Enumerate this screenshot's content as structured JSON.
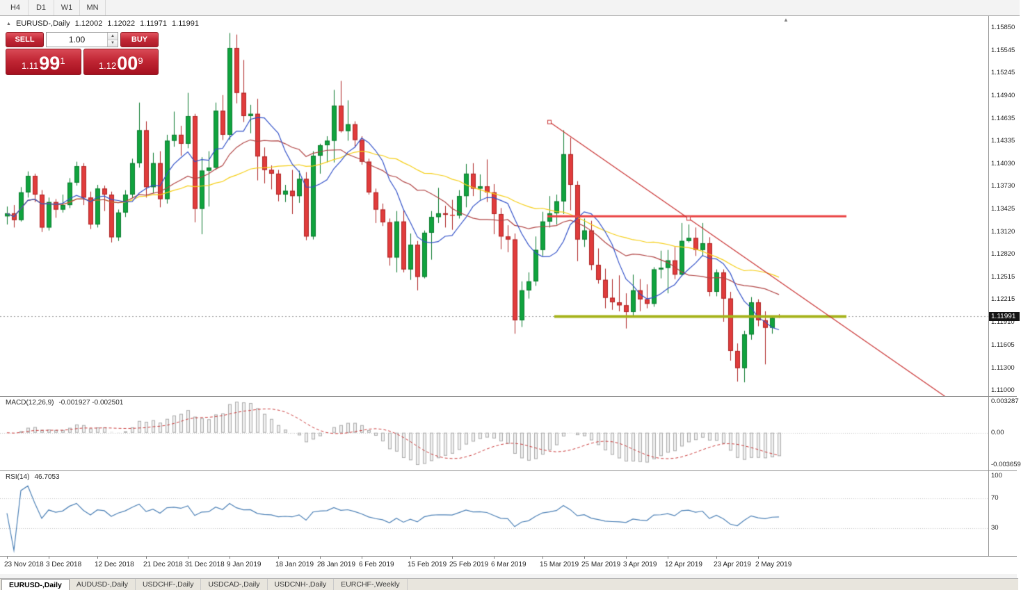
{
  "topbar": {
    "timeframes": [
      "H4",
      "D1",
      "W1",
      "MN"
    ]
  },
  "icons": {
    "symbol_expand": "▲",
    "scroll_end": "▲",
    "spin_up": "▲",
    "spin_down": "▼"
  },
  "chart_header": {
    "symbol_period": "EURUSD-,Daily",
    "open": "1.12002",
    "high": "1.12022",
    "low": "1.11971",
    "close": "1.11991"
  },
  "trade_panel": {
    "sell_label": "SELL",
    "buy_label": "BUY",
    "volume": "1.00",
    "sell_price": {
      "head": "1.11",
      "pips": "99",
      "pt": "1"
    },
    "buy_price": {
      "head": "1.12",
      "pips": "00",
      "pt": "9"
    }
  },
  "price_scale": {
    "labels": [
      "1.15850",
      "1.15545",
      "1.15245",
      "1.14940",
      "1.14635",
      "1.14335",
      "1.14030",
      "1.13730",
      "1.13425",
      "1.13120",
      "1.12820",
      "1.12515",
      "1.12215",
      "1.11910",
      "1.11605",
      "1.11300",
      "1.11000"
    ],
    "current_badge": "1.11991"
  },
  "macd_panel": {
    "name": "MACD(12,26,9)",
    "values": "-0.001927 -0.002501",
    "scale_top": "0.003287",
    "scale_zero": "0.00",
    "scale_bottom": "-0.003659"
  },
  "rsi_panel": {
    "name": "RSI(14)",
    "value": "46.7053",
    "scale_top": "100",
    "scale_mid": "70",
    "scale_low": "30"
  },
  "date_axis": {
    "ticks": [
      {
        "index": 0,
        "label": "23 Nov 2018"
      },
      {
        "index": 6,
        "label": "3 Dec 2018"
      },
      {
        "index": 13,
        "label": "12 Dec 2018"
      },
      {
        "index": 20,
        "label": "21 Dec 2018"
      },
      {
        "index": 26,
        "label": "31 Dec 2018"
      },
      {
        "index": 32,
        "label": "9 Jan 2019"
      },
      {
        "index": 39,
        "label": "18 Jan 2019"
      },
      {
        "index": 45,
        "label": "28 Jan 2019"
      },
      {
        "index": 51,
        "label": "6 Feb 2019"
      },
      {
        "index": 58,
        "label": "15 Feb 2019"
      },
      {
        "index": 64,
        "label": "25 Feb 2019"
      },
      {
        "index": 70,
        "label": "6 Mar 2019"
      },
      {
        "index": 77,
        "label": "15 Mar 2019"
      },
      {
        "index": 83,
        "label": "25 Mar 2019"
      },
      {
        "index": 89,
        "label": "3 Apr 2019"
      },
      {
        "index": 95,
        "label": "12 Apr 2019"
      },
      {
        "index": 102,
        "label": "23 Apr 2019"
      },
      {
        "index": 108,
        "label": "2 May 2019"
      }
    ]
  },
  "bottom_tabs": [
    {
      "label": "EURUSD-,Daily",
      "active": true
    },
    {
      "label": "AUDUSD-,Daily",
      "active": false
    },
    {
      "label": "USDCHF-,Daily",
      "active": false
    },
    {
      "label": "USDCAD-,Daily",
      "active": false
    },
    {
      "label": "USDCNH-,Daily",
      "active": false
    },
    {
      "label": "EURCHF-,Weekly",
      "active": false
    }
  ],
  "colors": {
    "bull": "#10a33e",
    "bull_border": "#0b7a2e",
    "bear": "#e03c3c",
    "bear_border": "#ae2323",
    "ma_blue": "#3150c8",
    "ma_red": "#b04343",
    "ma_yellow": "#f5ce16",
    "trendline_red": "#c93131",
    "hline_red": "#ea4343",
    "hline_olive": "#a6b31c",
    "current_line": "#9a9a9a",
    "grid_dotted": "#c4c4c4",
    "macd_fill": "#efefef",
    "macd_stroke": "#ababab",
    "macd_signal": "#ca3a3a",
    "rsi_line": "#4a7fb5",
    "accent_red": "#c22836",
    "badge_bg": "#141414"
  },
  "chart_data": {
    "type": "candlestick",
    "symbol": "EURUSD",
    "timeframe": "Daily",
    "title": "EURUSD-,Daily",
    "last_ohlc": [
      1.12002,
      1.12022,
      1.11971,
      1.11991
    ],
    "price_axis": {
      "top_price": 1.1585,
      "bottom_price": 1.11,
      "labels_numeric": [
        1.1585,
        1.15545,
        1.15245,
        1.1494,
        1.14635,
        1.14335,
        1.1403,
        1.1373,
        1.13425,
        1.1312,
        1.1282,
        1.12515,
        1.12215,
        1.1191,
        1.11605,
        1.113,
        1.11
      ]
    },
    "candles": [
      [
        1.1333,
        1.1346,
        1.1322,
        1.1337
      ],
      [
        1.1337,
        1.1348,
        1.1318,
        1.1328
      ],
      [
        1.1328,
        1.1372,
        1.1326,
        1.1365
      ],
      [
        1.1365,
        1.1393,
        1.1358,
        1.1387
      ],
      [
        1.1387,
        1.139,
        1.1352,
        1.1362
      ],
      [
        1.1362,
        1.1368,
        1.1312,
        1.1318
      ],
      [
        1.1318,
        1.1358,
        1.1314,
        1.1352
      ],
      [
        1.1352,
        1.1356,
        1.1331,
        1.1342
      ],
      [
        1.1342,
        1.1362,
        1.1338,
        1.1348
      ],
      [
        1.1348,
        1.1384,
        1.1344,
        1.1378
      ],
      [
        1.1378,
        1.1406,
        1.1374,
        1.14
      ],
      [
        1.14,
        1.1404,
        1.1348,
        1.1358
      ],
      [
        1.1358,
        1.1366,
        1.1316,
        1.1322
      ],
      [
        1.1322,
        1.1375,
        1.1318,
        1.137
      ],
      [
        1.137,
        1.1374,
        1.134,
        1.1362
      ],
      [
        1.1362,
        1.1366,
        1.1298,
        1.1305
      ],
      [
        1.1305,
        1.1342,
        1.13,
        1.1338
      ],
      [
        1.1338,
        1.1368,
        1.1332,
        1.1362
      ],
      [
        1.1362,
        1.141,
        1.1358,
        1.1404
      ],
      [
        1.1404,
        1.1485,
        1.1398,
        1.1448
      ],
      [
        1.1448,
        1.146,
        1.1358,
        1.1372
      ],
      [
        1.1372,
        1.1418,
        1.1364,
        1.1404
      ],
      [
        1.1404,
        1.142,
        1.1345,
        1.1356
      ],
      [
        1.1356,
        1.1442,
        1.135,
        1.1434
      ],
      [
        1.1434,
        1.1473,
        1.1426,
        1.1442
      ],
      [
        1.1442,
        1.1454,
        1.1414,
        1.143
      ],
      [
        1.143,
        1.1498,
        1.1424,
        1.1467
      ],
      [
        1.1467,
        1.147,
        1.1325,
        1.1343
      ],
      [
        1.1343,
        1.1412,
        1.1309,
        1.1394
      ],
      [
        1.1394,
        1.142,
        1.1346,
        1.1398
      ],
      [
        1.1398,
        1.1485,
        1.1395,
        1.1474
      ],
      [
        1.1474,
        1.1495,
        1.1435,
        1.1442
      ],
      [
        1.1442,
        1.1578,
        1.1435,
        1.1558
      ],
      [
        1.1558,
        1.1576,
        1.1484,
        1.1498
      ],
      [
        1.1498,
        1.1542,
        1.1459,
        1.1467
      ],
      [
        1.1467,
        1.1482,
        1.1444,
        1.147
      ],
      [
        1.147,
        1.149,
        1.1381,
        1.1413
      ],
      [
        1.1413,
        1.1425,
        1.1377,
        1.1395
      ],
      [
        1.1395,
        1.1401,
        1.1369,
        1.139
      ],
      [
        1.139,
        1.1395,
        1.1353,
        1.1362
      ],
      [
        1.1362,
        1.1375,
        1.1352,
        1.1367
      ],
      [
        1.1367,
        1.1395,
        1.1336,
        1.136
      ],
      [
        1.136,
        1.1394,
        1.1351,
        1.1383
      ],
      [
        1.1383,
        1.1392,
        1.1301,
        1.1306
      ],
      [
        1.1306,
        1.142,
        1.1302,
        1.1414
      ],
      [
        1.1414,
        1.143,
        1.139,
        1.1428
      ],
      [
        1.1428,
        1.144,
        1.1405,
        1.1434
      ],
      [
        1.1434,
        1.1502,
        1.1405,
        1.1481
      ],
      [
        1.1481,
        1.1514,
        1.1445,
        1.1447
      ],
      [
        1.1447,
        1.1488,
        1.1434,
        1.1456
      ],
      [
        1.1456,
        1.146,
        1.1425,
        1.1435
      ],
      [
        1.1435,
        1.144,
        1.1402,
        1.1406
      ],
      [
        1.1406,
        1.141,
        1.1362,
        1.1365
      ],
      [
        1.1365,
        1.137,
        1.1324,
        1.1342
      ],
      [
        1.1342,
        1.135,
        1.132,
        1.1325
      ],
      [
        1.1325,
        1.133,
        1.1267,
        1.1278
      ],
      [
        1.1278,
        1.134,
        1.1258,
        1.1326
      ],
      [
        1.1326,
        1.1341,
        1.1258,
        1.1262
      ],
      [
        1.1262,
        1.131,
        1.1248,
        1.1295
      ],
      [
        1.1295,
        1.13,
        1.1234,
        1.1252
      ],
      [
        1.1252,
        1.1314,
        1.125,
        1.1311
      ],
      [
        1.1311,
        1.134,
        1.1275,
        1.1332
      ],
      [
        1.1332,
        1.1371,
        1.1324,
        1.1337
      ],
      [
        1.1337,
        1.1347,
        1.1318,
        1.1335
      ],
      [
        1.1335,
        1.1355,
        1.1315,
        1.1334
      ],
      [
        1.1334,
        1.1368,
        1.133,
        1.136
      ],
      [
        1.136,
        1.1403,
        1.1345,
        1.139
      ],
      [
        1.139,
        1.1404,
        1.136,
        1.137
      ],
      [
        1.137,
        1.1389,
        1.1355,
        1.1373
      ],
      [
        1.1373,
        1.1409,
        1.1352,
        1.1365
      ],
      [
        1.1365,
        1.1376,
        1.1309,
        1.1336
      ],
      [
        1.1336,
        1.1344,
        1.1289,
        1.1306
      ],
      [
        1.1306,
        1.1321,
        1.1285,
        1.1302
      ],
      [
        1.1302,
        1.131,
        1.1176,
        1.1194
      ],
      [
        1.1194,
        1.1246,
        1.1185,
        1.1234
      ],
      [
        1.1234,
        1.1258,
        1.1223,
        1.1246
      ],
      [
        1.1246,
        1.1306,
        1.124,
        1.1288
      ],
      [
        1.1288,
        1.1339,
        1.128,
        1.1326
      ],
      [
        1.1326,
        1.136,
        1.1318,
        1.1337
      ],
      [
        1.1337,
        1.1362,
        1.1322,
        1.1353
      ],
      [
        1.1353,
        1.1448,
        1.1336,
        1.1416
      ],
      [
        1.1416,
        1.1438,
        1.1341,
        1.1375
      ],
      [
        1.1375,
        1.138,
        1.1273,
        1.1302
      ],
      [
        1.1302,
        1.133,
        1.1292,
        1.1314
      ],
      [
        1.1314,
        1.1327,
        1.1261,
        1.1268
      ],
      [
        1.1268,
        1.129,
        1.1243,
        1.1248
      ],
      [
        1.1248,
        1.1263,
        1.121,
        1.1224
      ],
      [
        1.1224,
        1.1249,
        1.1208,
        1.1218
      ],
      [
        1.1218,
        1.1254,
        1.1206,
        1.1214
      ],
      [
        1.1214,
        1.123,
        1.1183,
        1.1205
      ],
      [
        1.1205,
        1.1255,
        1.12,
        1.1234
      ],
      [
        1.1234,
        1.1249,
        1.1206,
        1.1222
      ],
      [
        1.1222,
        1.1242,
        1.121,
        1.1216
      ],
      [
        1.1216,
        1.1265,
        1.1212,
        1.1262
      ],
      [
        1.1262,
        1.1287,
        1.125,
        1.1264
      ],
      [
        1.1264,
        1.1288,
        1.123,
        1.1274
      ],
      [
        1.1274,
        1.1292,
        1.1249,
        1.1255
      ],
      [
        1.1255,
        1.1324,
        1.1253,
        1.13
      ],
      [
        1.13,
        1.1322,
        1.1298,
        1.1304
      ],
      [
        1.1304,
        1.1318,
        1.128,
        1.1288
      ],
      [
        1.1288,
        1.1324,
        1.128,
        1.1297
      ],
      [
        1.1297,
        1.1305,
        1.1226,
        1.1232
      ],
      [
        1.1232,
        1.1262,
        1.1226,
        1.1258
      ],
      [
        1.1258,
        1.1262,
        1.1192,
        1.1223
      ],
      [
        1.1223,
        1.1232,
        1.114,
        1.1153
      ],
      [
        1.1153,
        1.1163,
        1.1112,
        1.113
      ],
      [
        1.113,
        1.118,
        1.1111,
        1.1175
      ],
      [
        1.1175,
        1.1225,
        1.1168,
        1.1218
      ],
      [
        1.1218,
        1.1222,
        1.1186,
        1.1194
      ],
      [
        1.1194,
        1.1206,
        1.1135,
        1.1184
      ],
      [
        1.1184,
        1.12,
        1.1176,
        1.1197
      ],
      [
        1.12002,
        1.12022,
        1.11971,
        1.11991
      ]
    ],
    "moving_averages": [
      {
        "period": 8,
        "color_key": "ma_blue"
      },
      {
        "period": 17,
        "color_key": "ma_red"
      },
      {
        "period": 34,
        "color_key": "ma_yellow"
      }
    ],
    "objects": {
      "trendline": {
        "p1": {
          "index": 78,
          "price": 1.1459
        },
        "p2": {
          "index": 98,
          "price": 1.133
        },
        "extend_to_index": 135,
        "color_key": "trendline_red"
      },
      "resistance_line": {
        "price": 1.1333,
        "from_index": 78,
        "to_index": 121,
        "width": 3,
        "color_key": "hline_red"
      },
      "support_line": {
        "price": 1.1199,
        "from_index": 79,
        "to_index": 121,
        "width": 4,
        "color_key": "hline_olive"
      },
      "current_price": 1.11991
    },
    "indicators": {
      "macd": {
        "fast": 12,
        "slow": 26,
        "signal": 9,
        "value": -0.001927,
        "signal_value": -0.002501,
        "scale_max": 0.003287,
        "scale_min": -0.003659
      },
      "rsi": {
        "period": 14,
        "value": 46.7053,
        "levels": [
          70,
          30
        ]
      }
    }
  }
}
